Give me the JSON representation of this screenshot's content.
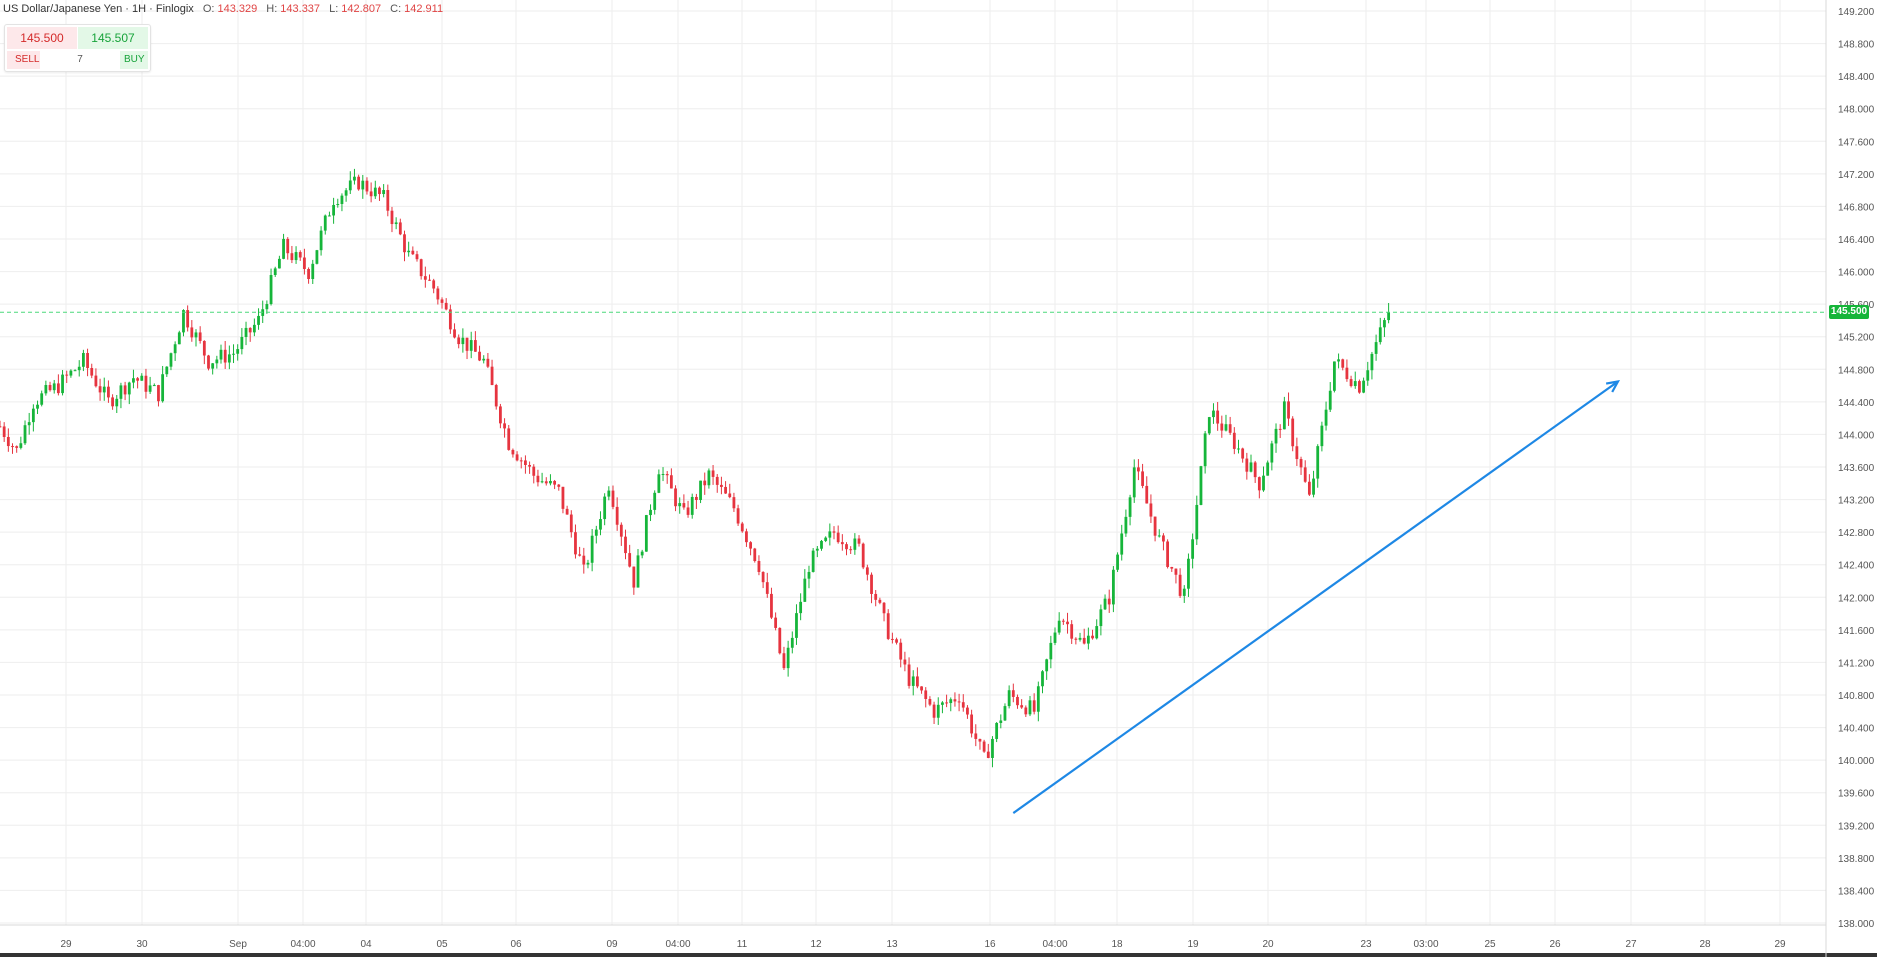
{
  "header": {
    "symbol": "US Dollar/Japanese Yen · 1H · Finlogix",
    "o_label": "O:",
    "o_value": "143.329",
    "h_label": "H:",
    "h_value": "143.337",
    "l_label": "L:",
    "l_value": "142.807",
    "c_label": "C:",
    "c_value": "142.911"
  },
  "trade": {
    "sell_price": "145.500",
    "buy_price": "145.507",
    "sell_label": "SELL",
    "buy_label": "BUY",
    "quantity": "7"
  },
  "last_price_label": "145.500",
  "colors": {
    "up": "#16b53a",
    "down": "#e6343f",
    "trendline": "#1e88e5",
    "grid": "#eeeeee",
    "last_line": "#4cd97b"
  },
  "chart_data": {
    "type": "candlestick",
    "title": "",
    "interval": "1H",
    "ylim": [
      137.9,
      149.3
    ],
    "y_ticks": [
      "138.000",
      "138.400",
      "138.800",
      "139.200",
      "139.600",
      "140.000",
      "140.400",
      "140.800",
      "141.200",
      "141.600",
      "142.000",
      "142.400",
      "142.800",
      "143.200",
      "143.600",
      "144.000",
      "144.400",
      "144.800",
      "145.200",
      "145.600",
      "146.000",
      "146.400",
      "146.800",
      "147.200",
      "147.600",
      "148.000",
      "148.400",
      "148.800",
      "149.200"
    ],
    "x_ticks": [
      "29",
      "30",
      "Sep",
      "04:00",
      "04",
      "05",
      "06",
      "09",
      "04:00",
      "11",
      "12",
      "13",
      "16",
      "04:00",
      "18",
      "19",
      "20",
      "23",
      "03:00",
      "25",
      "26",
      "27",
      "28",
      "29"
    ],
    "last_price": 145.5,
    "path_index": [
      0,
      4,
      8,
      14,
      20,
      26,
      32,
      38,
      44,
      50,
      56,
      62,
      68,
      74,
      80,
      86,
      92,
      98,
      104,
      110,
      116,
      122,
      128,
      134,
      140,
      146,
      152,
      158,
      164,
      170,
      176,
      182,
      188,
      194,
      200,
      206,
      212,
      218,
      224,
      230,
      236,
      242,
      248,
      254,
      260,
      266,
      272,
      278,
      284,
      290,
      296,
      302,
      308,
      314,
      320,
      326,
      333
    ],
    "path_price": [
      144.1,
      143.8,
      144.4,
      144.6,
      144.9,
      144.4,
      144.7,
      144.5,
      145.5,
      144.9,
      145.0,
      145.4,
      146.3,
      146.0,
      146.9,
      147.1,
      146.9,
      146.2,
      145.8,
      145.2,
      144.9,
      143.9,
      143.5,
      143.3,
      142.3,
      143.4,
      142.2,
      143.6,
      143.0,
      143.5,
      143.1,
      142.4,
      141.1,
      142.4,
      142.8,
      142.6,
      141.7,
      141.0,
      140.6,
      140.8,
      140.0,
      140.8,
      140.6,
      141.8,
      141.4,
      142.0,
      143.6,
      142.7,
      142.0,
      144.3,
      143.9,
      143.4,
      144.3,
      143.2,
      144.9,
      144.6,
      145.5
    ],
    "trendline": {
      "start": {
        "index": 243,
        "price": 139.35
      },
      "end": {
        "index": 388,
        "price": 144.65
      },
      "arrow": true
    }
  }
}
